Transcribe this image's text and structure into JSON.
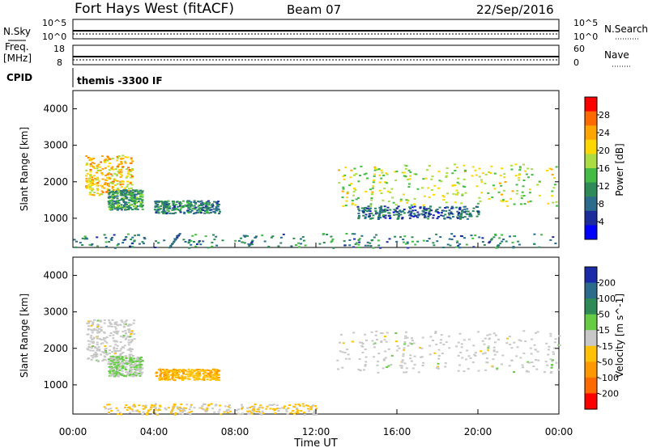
{
  "header": {
    "title": "Fort Hays West (fitACF)",
    "beam": "Beam 07",
    "date": "22/Sep/2016"
  },
  "summary": {
    "nsky_label": "N.Sky",
    "nsky_ticks": [
      "10^5",
      "10^0"
    ],
    "nsearch_label": "N.Search",
    "freq_label": "Freq.",
    "freq_unit": "[MHz]",
    "freq_ticks": [
      "18",
      "8"
    ],
    "nave_label": "Nave",
    "nave_ticks": [
      "60",
      "0"
    ],
    "cpid_label": "CPID",
    "cpid_text": "themis -3300 IF"
  },
  "power_colorbar": {
    "label": "Power [dB]",
    "ticks": [
      "28",
      "24",
      "20",
      "16",
      "12",
      "8",
      "4"
    ],
    "colors": [
      "#ff0000",
      "#ff6a00",
      "#ffa500",
      "#ffd700",
      "#aadd44",
      "#44bb44",
      "#2e8b57",
      "#2b6b8b",
      "#1c2c9a",
      "#0000ff"
    ]
  },
  "velocity_colorbar": {
    "label": "Velocity [m s^-1]",
    "ticks": [
      "200",
      "100",
      "50",
      "15",
      "-15",
      "-50",
      "-100",
      "-200"
    ],
    "colors": [
      "#1a2aa8",
      "#2b6b8b",
      "#2e8b57",
      "#66cc44",
      "#c8c8c8",
      "#ffc107",
      "#ff9800",
      "#ff6a00",
      "#ff0000"
    ]
  },
  "chart_data": [
    {
      "type": "heatmap",
      "title": "Power",
      "ylabel": "Slant Range [km]",
      "ylim": [
        200,
        4500
      ],
      "yticks": [
        "4000",
        "3000",
        "2000",
        "1000"
      ],
      "xlim": [
        0,
        24
      ],
      "colorbar_range": [
        0,
        32
      ],
      "regions": [
        {
          "x": [
            0.6,
            2.9
          ],
          "y": [
            1650,
            2750
          ],
          "value": 22
        },
        {
          "x": [
            1.7,
            3.4
          ],
          "y": [
            1250,
            1800
          ],
          "value": 12
        },
        {
          "x": [
            4.0,
            7.2
          ],
          "y": [
            1150,
            1500
          ],
          "value": 10
        },
        {
          "x": [
            13.0,
            24.0
          ],
          "y": [
            1350,
            2500
          ],
          "value": 18
        },
        {
          "x": [
            14.0,
            20.0
          ],
          "y": [
            1000,
            1350
          ],
          "value": 8
        },
        {
          "x": [
            0.0,
            24.0
          ],
          "y": [
            200,
            600
          ],
          "value": 10
        }
      ]
    },
    {
      "type": "heatmap",
      "title": "Velocity",
      "ylabel": "Slant Range [km]",
      "ylim": [
        200,
        4500
      ],
      "yticks": [
        "4000",
        "3000",
        "2000",
        "1000"
      ],
      "xlim": [
        0,
        24
      ],
      "colorbar_range": [
        -250,
        250
      ],
      "regions": [
        {
          "x": [
            0.6,
            3.0
          ],
          "y": [
            1650,
            2800
          ],
          "value": 0
        },
        {
          "x": [
            1.7,
            3.4
          ],
          "y": [
            1250,
            1800
          ],
          "value": 30
        },
        {
          "x": [
            4.0,
            7.2
          ],
          "y": [
            1150,
            1450
          ],
          "value": -70
        },
        {
          "x": [
            13.0,
            24.0
          ],
          "y": [
            1350,
            2500
          ],
          "value": 0
        },
        {
          "x": [
            1.5,
            12.0
          ],
          "y": [
            200,
            500
          ],
          "value": -30
        }
      ]
    }
  ],
  "xaxis": {
    "ticks": [
      "00:00",
      "04:00",
      "08:00",
      "12:00",
      "16:00",
      "20:00",
      "00:00"
    ],
    "label": "Time UT"
  }
}
